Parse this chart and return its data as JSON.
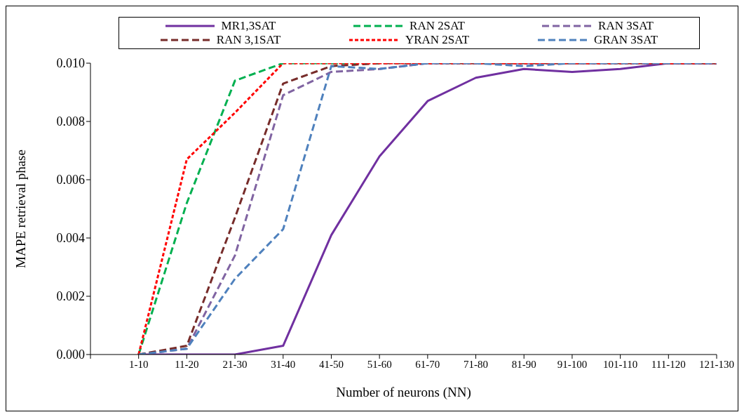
{
  "chart_data": {
    "type": "line",
    "xlabel": "Number of neurons (NN)",
    "ylabel": "MAPE retrieval phase",
    "categories": [
      null,
      "1-10",
      "11-20",
      "21-30",
      "31-40",
      "41-50",
      "51-60",
      "61-70",
      "71-80",
      "81-90",
      "91-100",
      "101-110",
      "111-120",
      "121-130"
    ],
    "series": [
      {
        "name": "MR1,3SAT",
        "color": "#7030a0",
        "line_style": "solid",
        "values": [
          null,
          0,
          0,
          0,
          0.0003,
          0.0041,
          0.0068,
          0.0087,
          0.0095,
          0.0098,
          0.0097,
          0.0098,
          0.01,
          0.01
        ]
      },
      {
        "name": "RAN 2SAT",
        "color": "#00b050",
        "line_style": "dashed",
        "values": [
          null,
          0,
          0.0052,
          0.0094,
          0.01,
          0.01,
          0.01,
          null,
          null,
          null,
          null,
          null,
          null,
          null
        ]
      },
      {
        "name": "RAN 3SAT",
        "color": "#8064a2",
        "line_style": "dashed",
        "values": [
          null,
          0,
          0.0002,
          0.0034,
          0.0089,
          0.0097,
          0.0098,
          0.01,
          0.01,
          0.01,
          0.01,
          0.01,
          0.01,
          0.01
        ]
      },
      {
        "name": "RAN 3,1SAT",
        "color": "#772c2a",
        "line_style": "dashed",
        "values": [
          null,
          0,
          0.0003,
          0.0047,
          0.0093,
          0.0099,
          0.01,
          0.01,
          0.01,
          0.01,
          0.01,
          0.01,
          0.01,
          0.01
        ]
      },
      {
        "name": "YRAN 2SAT",
        "color": "#ff0000",
        "line_style": "dotted",
        "values": [
          null,
          0,
          0.0067,
          0.0083,
          0.01,
          0.01,
          0.01,
          0.01,
          0.01,
          0.01,
          0.01,
          0.01,
          0.01,
          0.01
        ]
      },
      {
        "name": "GRAN 3SAT",
        "color": "#4f81bd",
        "line_style": "dashed",
        "values": [
          null,
          0,
          0.0002,
          0.0026,
          0.0043,
          0.0099,
          0.0098,
          0.01,
          0.01,
          0.0099,
          0.01,
          0.01,
          0.01,
          0.01
        ]
      }
    ],
    "ylim": [
      0,
      0.01
    ],
    "yticks": [
      {
        "value": 0,
        "label": "0.000"
      },
      {
        "value": 0.002,
        "label": "0.002"
      },
      {
        "value": 0.004,
        "label": "0.004"
      },
      {
        "value": 0.006,
        "label": "0.006"
      },
      {
        "value": 0.008,
        "label": "0.008"
      },
      {
        "value": 0.01,
        "label": "0.010"
      }
    ],
    "grid": false,
    "legend": "top",
    "marker": "none"
  }
}
